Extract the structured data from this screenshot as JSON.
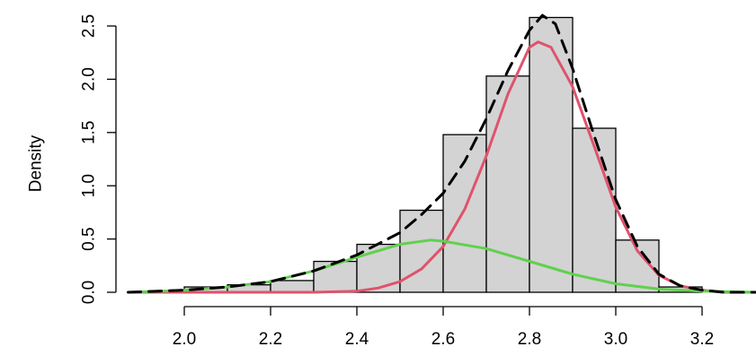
{
  "chart_data": {
    "type": "bar",
    "title": "",
    "xlabel": "",
    "ylabel": "Density",
    "xlim": [
      1.87,
      3.33
    ],
    "ylim": [
      0,
      2.6
    ],
    "x_ticks": [
      2.0,
      2.2,
      2.4,
      2.6,
      2.8,
      3.0,
      3.2
    ],
    "x_tick_labels": [
      "2.0",
      "2.2",
      "2.4",
      "2.6",
      "2.8",
      "3.0",
      "3.2"
    ],
    "y_ticks": [
      0.0,
      0.5,
      1.0,
      1.5,
      2.0,
      2.5
    ],
    "y_tick_labels": [
      "0.0",
      "0.5",
      "1.0",
      "1.5",
      "2.0",
      "2.5"
    ],
    "grid": false,
    "histogram": {
      "bin_edges": [
        2.0,
        2.1,
        2.2,
        2.3,
        2.4,
        2.5,
        2.6,
        2.7,
        2.8,
        2.9,
        3.0,
        3.1,
        3.2
      ],
      "density": [
        0.05,
        0.07,
        0.11,
        0.29,
        0.45,
        0.77,
        1.48,
        2.03,
        2.58,
        1.54,
        0.49,
        0.05
      ],
      "color": "#d3d3d3"
    },
    "series": [
      {
        "type": "line",
        "color": "#df536b",
        "style": "solid",
        "x": [
          1.87,
          2.3,
          2.4,
          2.45,
          2.5,
          2.55,
          2.6,
          2.65,
          2.7,
          2.75,
          2.8,
          2.82,
          2.85,
          2.9,
          2.95,
          3.0,
          3.05,
          3.1,
          3.15,
          3.2,
          3.25,
          3.33
        ],
        "y": [
          0.0,
          0.0,
          0.01,
          0.04,
          0.1,
          0.22,
          0.43,
          0.78,
          1.28,
          1.86,
          2.3,
          2.35,
          2.3,
          1.93,
          1.37,
          0.8,
          0.39,
          0.16,
          0.06,
          0.02,
          0.0,
          0.0
        ]
      },
      {
        "type": "line",
        "color": "#61d04f",
        "style": "solid",
        "x": [
          1.87,
          1.95,
          2.0,
          2.1,
          2.2,
          2.3,
          2.4,
          2.5,
          2.57,
          2.6,
          2.7,
          2.8,
          2.9,
          3.0,
          3.1,
          3.2,
          3.33
        ],
        "y": [
          0.0,
          0.01,
          0.02,
          0.05,
          0.1,
          0.2,
          0.33,
          0.45,
          0.49,
          0.48,
          0.41,
          0.29,
          0.17,
          0.08,
          0.03,
          0.01,
          0.0
        ]
      },
      {
        "type": "line",
        "color": "#000000",
        "style": "dashed",
        "x": [
          1.87,
          2.0,
          2.1,
          2.2,
          2.3,
          2.4,
          2.5,
          2.55,
          2.6,
          2.65,
          2.7,
          2.75,
          2.8,
          2.83,
          2.86,
          2.9,
          2.95,
          3.0,
          3.05,
          3.1,
          3.15,
          3.2,
          3.25,
          3.33
        ],
        "y": [
          0.0,
          0.02,
          0.05,
          0.1,
          0.2,
          0.35,
          0.56,
          0.73,
          0.93,
          1.23,
          1.63,
          2.08,
          2.46,
          2.6,
          2.52,
          2.1,
          1.47,
          0.87,
          0.43,
          0.17,
          0.06,
          0.02,
          0.0,
          0.0
        ]
      }
    ]
  }
}
